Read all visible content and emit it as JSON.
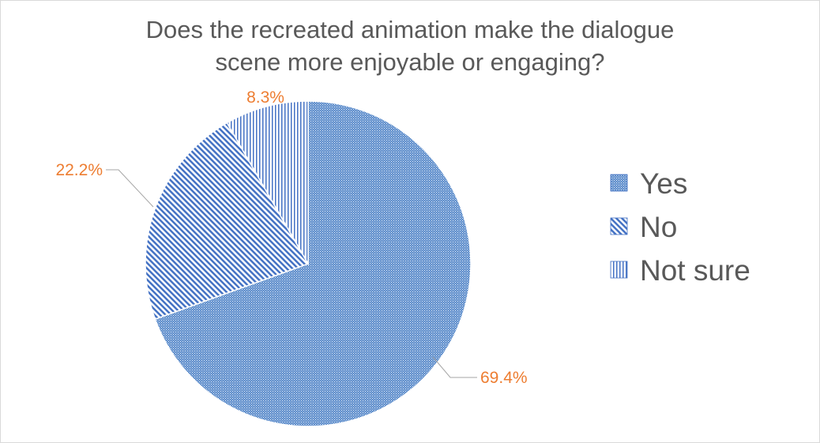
{
  "chart_data": {
    "type": "pie",
    "title_lines": [
      "Does the recreated animation make the dialogue",
      "scene more enjoyable or engaging?"
    ],
    "categories": [
      "Yes",
      "No",
      "Not sure"
    ],
    "values": [
      69.4,
      22.2,
      8.3
    ],
    "data_labels": [
      "69.4%",
      "22.2%",
      "8.3%"
    ],
    "fill_patterns": [
      "fine-dots",
      "diagonal-stripes",
      "vertical-stripes"
    ],
    "series_color": "#4472c4",
    "label_color": "#ed7d31",
    "title_color": "#595959",
    "legend_placement": "right"
  }
}
